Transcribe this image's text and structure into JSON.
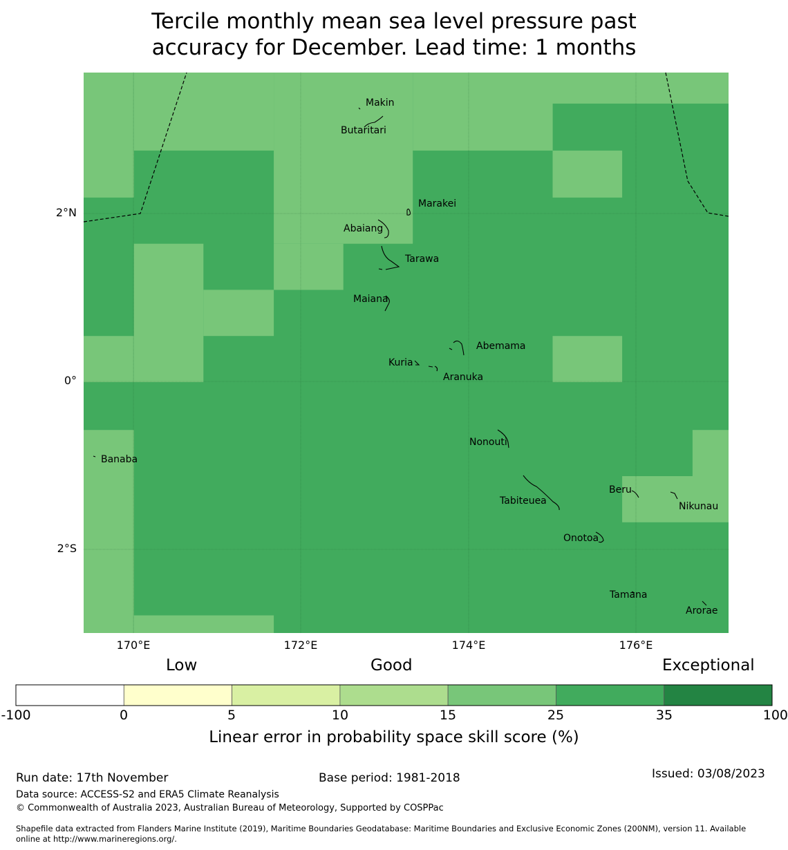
{
  "title": {
    "line1": "Tercile monthly mean sea level pressure past",
    "line2": "accuracy for December. Lead time: 1 months"
  },
  "axes": {
    "lat_labels": [
      "2°N",
      "0°",
      "2°S"
    ],
    "lon_labels": [
      "170°E",
      "172°E",
      "174°E",
      "176°E"
    ]
  },
  "grid": {
    "lon_min": 169.4,
    "lon_max": 177.1,
    "lat_min": -2.99,
    "lat_max": 3.69,
    "cells": [
      {
        "lon0": 169.4,
        "lon1": 170.0,
        "lat0": 2.2,
        "lat1": 3.69,
        "score": 20
      },
      {
        "lon0": 170.0,
        "lon1": 171.67,
        "lat0": 2.76,
        "lat1": 3.69,
        "score": 20
      },
      {
        "lon0": 171.67,
        "lon1": 173.33,
        "lat0": 1.65,
        "lat1": 3.69,
        "score": 20
      },
      {
        "lon0": 173.33,
        "lon1": 175.0,
        "lat0": 2.76,
        "lat1": 3.69,
        "score": 20
      },
      {
        "lon0": 175.0,
        "lon1": 175.83,
        "lat0": 2.2,
        "lat1": 2.76,
        "score": 20
      },
      {
        "lon0": 175.0,
        "lon1": 177.1,
        "lat0": 3.32,
        "lat1": 3.69,
        "score": 20
      },
      {
        "lon0": 171.67,
        "lon1": 172.5,
        "lat0": 1.1,
        "lat1": 1.65,
        "score": 20
      },
      {
        "lon0": 170.0,
        "lon1": 170.83,
        "lat0": 0.0,
        "lat1": 1.65,
        "score": 20
      },
      {
        "lon0": 170.83,
        "lon1": 171.67,
        "lat0": 0.55,
        "lat1": 1.1,
        "score": 20
      },
      {
        "lon0": 169.4,
        "lon1": 170.0,
        "lat0": 0.0,
        "lat1": 0.55,
        "score": 20
      },
      {
        "lon0": 175.0,
        "lon1": 175.83,
        "lat0": 0.0,
        "lat1": 0.55,
        "score": 20
      },
      {
        "lon0": 169.4,
        "lon1": 170.0,
        "lat0": -2.99,
        "lat1": -0.57,
        "score": 20
      },
      {
        "lon0": 170.0,
        "lon1": 171.67,
        "lat0": -2.99,
        "lat1": -2.78,
        "score": 20
      },
      {
        "lon0": 175.83,
        "lon1": 177.1,
        "lat0": -1.67,
        "lat1": -1.12,
        "score": 20
      },
      {
        "lon0": 176.67,
        "lon1": 177.1,
        "lat0": -1.12,
        "lat1": -0.57,
        "score": 20
      }
    ]
  },
  "places": [
    {
      "name": "Makin",
      "lon": 172.78,
      "lat": 3.31
    },
    {
      "name": "Butaritari",
      "lon": 172.48,
      "lat": 2.98
    },
    {
      "name": "Marakei",
      "lon": 173.22,
      "lat": 2.1
    },
    {
      "name": "Abaiang",
      "lon": 172.52,
      "lat": 1.8
    },
    {
      "name": "Tarawa",
      "lon": 173.12,
      "lat": 1.44
    },
    {
      "name": "Maiana",
      "lon": 172.65,
      "lat": 0.96
    },
    {
      "name": "Abemama",
      "lon": 174.08,
      "lat": 0.4
    },
    {
      "name": "Kuria",
      "lon": 173.22,
      "lat": 0.22
    },
    {
      "name": "Aranuka",
      "lon": 173.55,
      "lat": 0.04
    },
    {
      "name": "Nonouti",
      "lon": 174.0,
      "lat": -0.73
    },
    {
      "name": "Banaba",
      "lon": 169.6,
      "lat": -0.93
    },
    {
      "name": "Tabiteuea",
      "lon": 174.37,
      "lat": -1.43
    },
    {
      "name": "Beru",
      "lon": 175.79,
      "lat": -1.3
    },
    {
      "name": "Nikunau",
      "lon": 176.52,
      "lat": -1.5
    },
    {
      "name": "Onotoa",
      "lon": 175.12,
      "lat": -1.88
    },
    {
      "name": "Tamana",
      "lon": 175.8,
      "lat": -2.55
    },
    {
      "name": "Arorae",
      "lon": 176.6,
      "lat": -2.74
    }
  ],
  "colorbar": {
    "categories": [
      "Low",
      "Good",
      "Exceptional"
    ],
    "ticks": [
      "-100",
      "0",
      "5",
      "10",
      "15",
      "25",
      "35",
      "100"
    ],
    "colors": [
      "#ffffff",
      "#ffffcc",
      "#d9f0a3",
      "#addd8e",
      "#78c679",
      "#41ab5d",
      "#238443"
    ],
    "label": "Linear error in probability space skill score (%)"
  },
  "default_score_color": "#41ab5d",
  "footer": {
    "run_date": "Run date: 17th November",
    "base_period": "Base period: 1981-2018",
    "issued": "Issued: 03/08/2023",
    "data_source": "Data source: ACCESS-S2 and ERA5 Climate Reanalysis",
    "copyright": "© Commonwealth of Australia 2023, Australian Bureau of Meteorology, Supported by COSPPac",
    "shapefile_line1": "Shapefile data extracted from Flanders Marine Institute (2019), Maritime Boundaries Geodatabase: Maritime Boundaries and Exclusive Economic Zones (200NM), version 11. Available",
    "shapefile_line2": "online at http://www.marineregions.org/."
  }
}
